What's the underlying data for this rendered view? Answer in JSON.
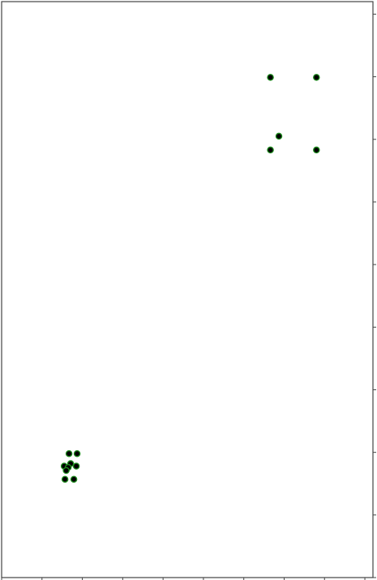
{
  "chart_data": {
    "type": "scatter",
    "title": "",
    "xlabel": "",
    "ylabel": "",
    "xlim": [
      0,
      9.2
    ],
    "ylim": [
      0,
      9.2
    ],
    "x_ticks": [
      0,
      1,
      2,
      3,
      4,
      5,
      6,
      7,
      8,
      9
    ],
    "y_ticks": [
      0,
      1,
      2,
      3,
      4,
      5,
      6,
      7,
      8,
      9
    ],
    "grid": false,
    "legend": "none",
    "marker_fill": "#000000",
    "marker_edge": "#1e8a1e",
    "points": [
      {
        "x": 1.67,
        "y": 1.98
      },
      {
        "x": 1.87,
        "y": 1.98
      },
      {
        "x": 1.55,
        "y": 1.78
      },
      {
        "x": 1.71,
        "y": 1.82
      },
      {
        "x": 1.65,
        "y": 1.76
      },
      {
        "x": 1.85,
        "y": 1.78
      },
      {
        "x": 1.6,
        "y": 1.71
      },
      {
        "x": 1.57,
        "y": 1.57
      },
      {
        "x": 1.79,
        "y": 1.57
      },
      {
        "x": 6.66,
        "y": 7.99
      },
      {
        "x": 7.8,
        "y": 7.99
      },
      {
        "x": 6.87,
        "y": 7.05
      },
      {
        "x": 6.66,
        "y": 6.83
      },
      {
        "x": 7.8,
        "y": 6.83
      }
    ]
  }
}
